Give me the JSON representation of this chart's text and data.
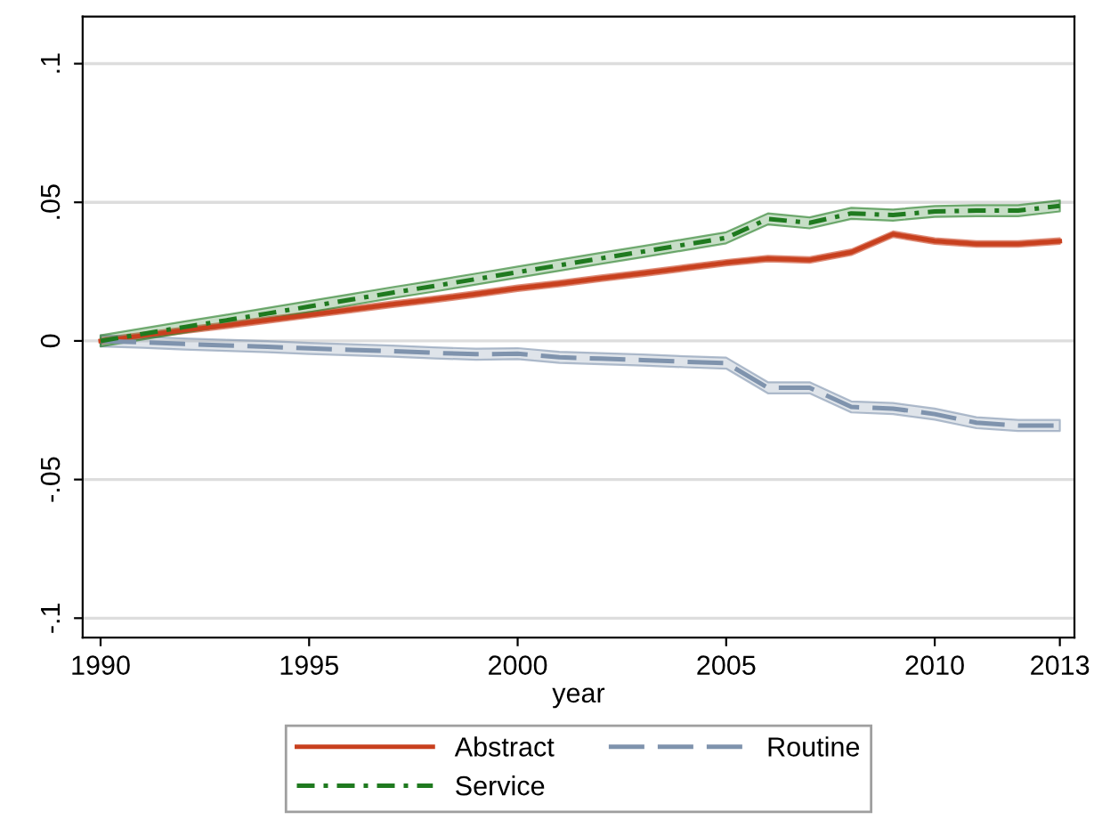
{
  "chart_data": {
    "type": "line",
    "xlabel": "year",
    "x": [
      1990,
      1991,
      1992,
      1993,
      1994,
      1995,
      1996,
      1997,
      1998,
      1999,
      2000,
      2001,
      2002,
      2003,
      2004,
      2005,
      2006,
      2007,
      2008,
      2009,
      2010,
      2011,
      2012,
      2013
    ],
    "series": [
      {
        "name": "Abstract",
        "color": "#c8401e",
        "line_style": "solid",
        "values": [
          0,
          0.0019,
          0.0038,
          0.0056,
          0.0075,
          0.0094,
          0.0113,
          0.0132,
          0.015,
          0.0169,
          0.019,
          0.0207,
          0.0226,
          0.0244,
          0.0263,
          0.0282,
          0.0297,
          0.0292,
          0.032,
          0.0385,
          0.036,
          0.035,
          0.035,
          0.036
        ],
        "lower": [
          -0.001,
          0.0009,
          0.0028,
          0.0046,
          0.0065,
          0.0084,
          0.0103,
          0.0122,
          0.014,
          0.0159,
          0.018,
          0.0197,
          0.0216,
          0.0234,
          0.0253,
          0.0272,
          0.0287,
          0.0282,
          0.031,
          0.0375,
          0.035,
          0.034,
          0.034,
          0.035
        ],
        "upper": [
          0.001,
          0.0029,
          0.0048,
          0.0066,
          0.0085,
          0.0104,
          0.0123,
          0.0142,
          0.016,
          0.0179,
          0.02,
          0.0217,
          0.0236,
          0.0254,
          0.0273,
          0.0292,
          0.0307,
          0.0302,
          0.033,
          0.0395,
          0.037,
          0.036,
          0.036,
          0.037
        ]
      },
      {
        "name": "Routine",
        "color": "#7f93ad",
        "line_style": "dashed",
        "values": [
          0,
          -0.0005,
          -0.0011,
          -0.0016,
          -0.0021,
          -0.0027,
          -0.0032,
          -0.0037,
          -0.0043,
          -0.0048,
          -0.0046,
          -0.0059,
          -0.0064,
          -0.0069,
          -0.0075,
          -0.008,
          -0.0169,
          -0.0169,
          -0.0238,
          -0.0244,
          -0.0264,
          -0.0295,
          -0.0305,
          -0.0305
        ],
        "lower": [
          -0.002,
          -0.0025,
          -0.0031,
          -0.0036,
          -0.0041,
          -0.0047,
          -0.0052,
          -0.0057,
          -0.0063,
          -0.0068,
          -0.0066,
          -0.0079,
          -0.0084,
          -0.0089,
          -0.0095,
          -0.01,
          -0.0189,
          -0.0189,
          -0.0258,
          -0.0264,
          -0.0284,
          -0.0315,
          -0.0325,
          -0.0325
        ],
        "upper": [
          0.002,
          0.0015,
          0.0009,
          0.0004,
          -0.0001,
          -0.0007,
          -0.0012,
          -0.0017,
          -0.0023,
          -0.0028,
          -0.0026,
          -0.0039,
          -0.0044,
          -0.0049,
          -0.0055,
          -0.006,
          -0.0149,
          -0.0149,
          -0.0218,
          -0.0224,
          -0.0244,
          -0.0275,
          -0.0285,
          -0.0285
        ]
      },
      {
        "name": "Service",
        "color": "#1f7a1f",
        "line_style": "dashdot",
        "values": [
          0,
          0.0025,
          0.005,
          0.0074,
          0.0099,
          0.0124,
          0.0149,
          0.0174,
          0.0198,
          0.0223,
          0.0248,
          0.0273,
          0.0298,
          0.0322,
          0.0347,
          0.0372,
          0.044,
          0.0426,
          0.046,
          0.0454,
          0.0467,
          0.047,
          0.047,
          0.0487
        ],
        "lower": [
          -0.002,
          0.0005,
          0.003,
          0.0054,
          0.0079,
          0.0104,
          0.0129,
          0.0154,
          0.0178,
          0.0203,
          0.0228,
          0.0253,
          0.0278,
          0.0302,
          0.0327,
          0.0352,
          0.042,
          0.0406,
          0.044,
          0.0434,
          0.0447,
          0.045,
          0.045,
          0.0467
        ],
        "upper": [
          0.002,
          0.0045,
          0.007,
          0.0094,
          0.0119,
          0.0144,
          0.0169,
          0.0194,
          0.0218,
          0.0243,
          0.0268,
          0.0293,
          0.0318,
          0.0342,
          0.0367,
          0.0392,
          0.046,
          0.0446,
          0.048,
          0.0474,
          0.0487,
          0.049,
          0.049,
          0.0507
        ]
      }
    ],
    "xlim": [
      1989.57,
      2013.35
    ],
    "xticks": [
      1990,
      1995,
      2000,
      2005,
      2010,
      2013
    ],
    "ylim": [
      -0.107,
      0.117
    ],
    "yticks": [
      {
        "value": -0.1,
        "label": "-.1"
      },
      {
        "value": -0.05,
        "label": "-.05"
      },
      {
        "value": 0,
        "label": "0"
      },
      {
        "value": 0.05,
        "label": ".05"
      },
      {
        "value": 0.1,
        "label": ".1"
      }
    ],
    "grid": "y",
    "legend": "bottom"
  }
}
